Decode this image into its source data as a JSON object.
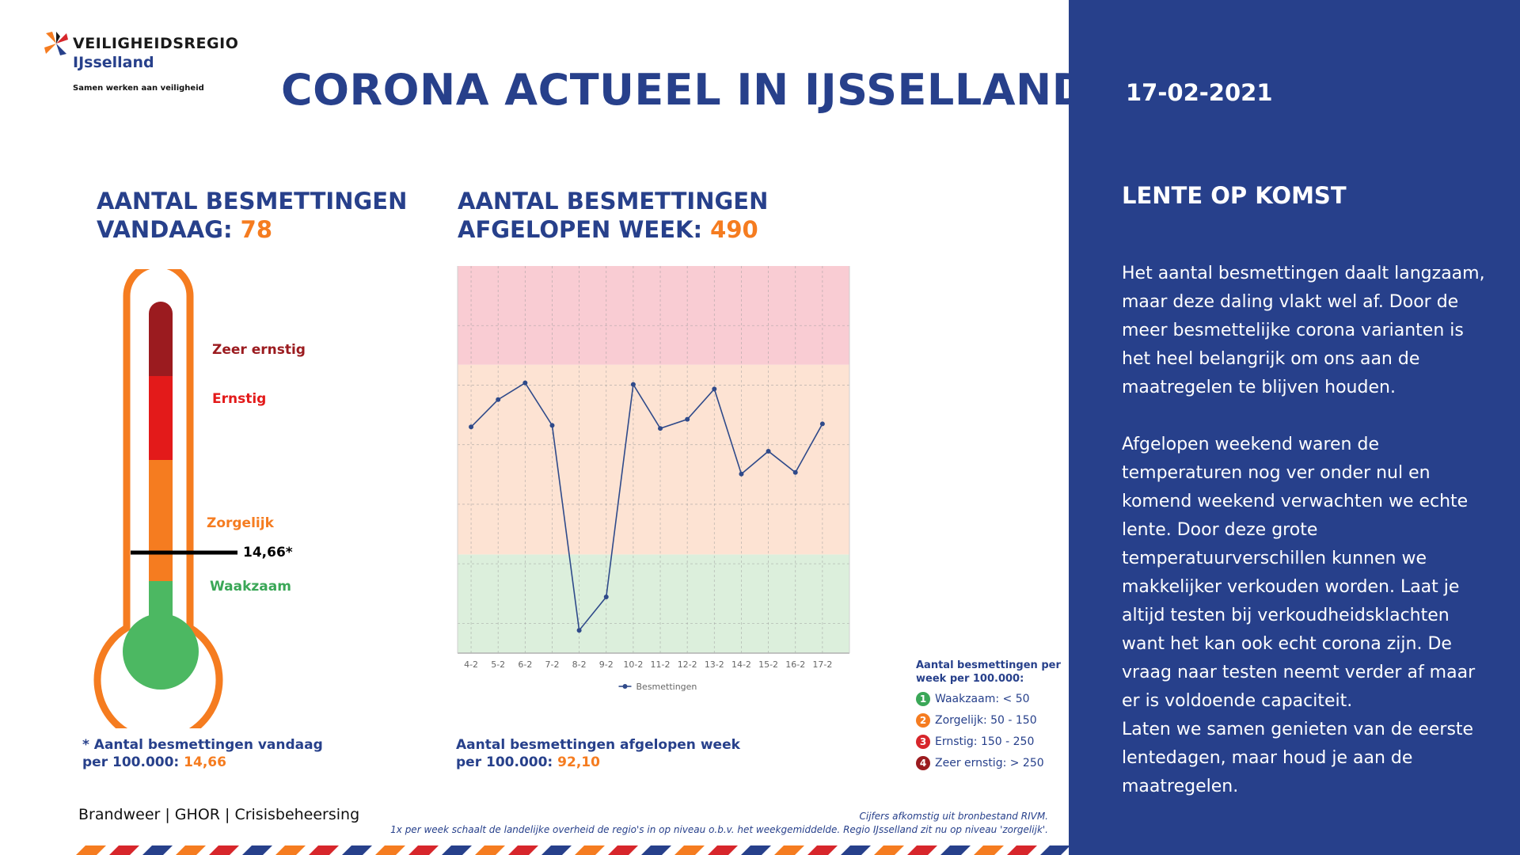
{
  "header": {
    "logo_name": "VEILIGHEIDSREGIO",
    "logo_region": "IJsselland",
    "logo_tagline": "Samen werken aan veiligheid",
    "title": "CORONA ACTUEEL IN IJSSELLAND"
  },
  "sidebar": {
    "date": "17-02-2021",
    "heading": "LENTE OP KOMST",
    "paragraphs": [
      "Het aantal besmettingen daalt langzaam, maar deze daling vlakt wel af. Door de meer besmettelijke corona varianten is het heel belangrijk om ons aan de maatregelen te blijven houden.",
      "Afgelopen weekend waren de temperaturen nog ver onder nul en komend weekend verwachten we echte lente. Door deze grote temperatuurverschillen kunnen we makkelijker verkouden worden. Laat je altijd testen bij verkoudheidsklachten want het kan ook echt corona zijn. De vraag naar testen neemt verder af maar er is voldoende capaciteit.",
      "Laten we samen genieten van de eerste lentedagen, maar houd je aan de maatregelen."
    ]
  },
  "today": {
    "heading_line1": "AANTAL BESMETTINGEN",
    "heading_line2": "VANDAAG: ",
    "value": "78",
    "footnote_line1": "* Aantal besmettingen vandaag",
    "footnote_line2": "per 100.000: ",
    "per100k": "14,66"
  },
  "thermometer": {
    "level_value": 14.66,
    "marker_label": "14,66*",
    "labels": {
      "zeer_ernstig": "Zeer ernstig",
      "ernstig": "Ernstig",
      "zorgelijk": "Zorgelijk",
      "waakzaam": "Waakzaam"
    }
  },
  "week": {
    "heading_line1": "AANTAL BESMETTINGEN",
    "heading_line2": "AFGELOPEN WEEK: ",
    "value": "490",
    "footnote_line1": "Aantal besmettingen afgelopen week",
    "footnote_line2": "per 100.000: ",
    "per100k": "92,10"
  },
  "chart_data": {
    "type": "line",
    "x": [
      "4-2",
      "5-2",
      "6-2",
      "7-2",
      "8-2",
      "9-2",
      "10-2",
      "11-2",
      "12-2",
      "13-2",
      "14-2",
      "15-2",
      "16-2",
      "17-2"
    ],
    "series": [
      {
        "name": "Besmettingen",
        "values": [
          59,
          77,
          88,
          60,
          -75,
          -53,
          87,
          58,
          64,
          84,
          28,
          43,
          29,
          61
        ],
        "color": "#2f4a8a"
      }
    ],
    "ylim": [
      -90,
      165
    ],
    "bands": [
      {
        "from": -90,
        "to": -25,
        "color": "#dcefdc"
      },
      {
        "from": -25,
        "to": 100,
        "color": "#fde3d3"
      },
      {
        "from": 100,
        "to": 165,
        "color": "#f9ccd3"
      }
    ],
    "grid": true,
    "legend": "bottom-center",
    "xlabel": "",
    "ylabel": "",
    "title": ""
  },
  "legend": {
    "title": "Aantal besmettingen per week per 100.000:",
    "items": [
      {
        "num": "1",
        "label": "Waakzaam: < 50",
        "color": "#3aa757"
      },
      {
        "num": "2",
        "label": "Zorgelijk: 50 - 150",
        "color": "#f57c20"
      },
      {
        "num": "3",
        "label": "Ernstig: 150 - 250",
        "color": "#d7262b"
      },
      {
        "num": "4",
        "label": "Zeer ernstig: > 250",
        "color": "#9b1b1f"
      }
    ]
  },
  "footer": {
    "partners": "Brandweer | GHOR | Crisisbeheersing",
    "source_line1": "Cijfers afkomstig uit bronbestand RIVM.",
    "source_line2": "1x per week schaalt de landelijke overheid de regio's in op niveau o.b.v. het weekgemiddelde. Regio IJsselland zit nu op niveau 'zorgelijk'."
  },
  "colors": {
    "brand_blue": "#27408b",
    "accent_orange": "#f57c20",
    "level_green": "#4cb862",
    "level_red": "#e31a1a",
    "level_dark_red": "#9b1b1f"
  }
}
